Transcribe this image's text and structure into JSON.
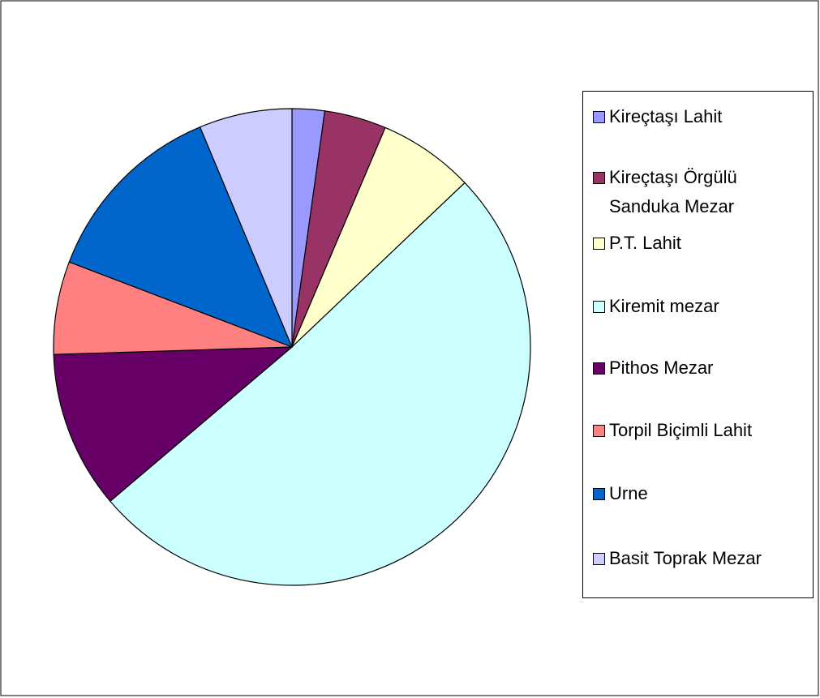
{
  "chart_data": {
    "type": "pie",
    "categories": [
      "Kireçtaşı Lahit",
      "Kireçtaşı Örgülü Sanduka Mezar",
      "P.T. Lahit",
      "Kiremit mezar",
      "Pithos Mezar",
      "Torpil Biçimli Lahit",
      "Urne",
      "Basit Toprak Mezar"
    ],
    "values": [
      2.2,
      4.2,
      6.5,
      50.9,
      10.7,
      6.3,
      12.9,
      6.3
    ],
    "colors": [
      "#9999ff",
      "#993366",
      "#ffffcc",
      "#ccffff",
      "#660066",
      "#ff8080",
      "#0066cc",
      "#ccccff"
    ],
    "legend": "right"
  }
}
